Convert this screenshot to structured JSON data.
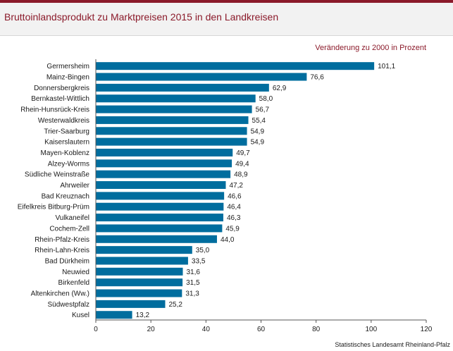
{
  "header": {
    "title": "Bruttoinlandsprodukt zu Marktpreisen 2015 in den Landkreisen"
  },
  "subtitle": "Veränderung zu 2000 in Prozent",
  "source": "Statistisches Landesamt Rheinland-Pfalz",
  "colors": {
    "bar": "#006d9e",
    "accent": "#8b1a2a",
    "header_bg": "#f2f2f2"
  },
  "chart_data": {
    "type": "bar",
    "orientation": "horizontal",
    "categories": [
      "Germersheim",
      "Mainz-Bingen",
      "Donnersbergkreis",
      "Bernkastel-Wittlich",
      "Rhein-Hunsrück-Kreis",
      "Westerwaldkreis",
      "Trier-Saarburg",
      "Kaiserslautern",
      "Mayen-Koblenz",
      "Alzey-Worms",
      "Südliche Weinstraße",
      "Ahrweiler",
      "Bad Kreuznach",
      "Eifelkreis Bitburg-Prüm",
      "Vulkaneifel",
      "Cochem-Zell",
      "Rhein-Pfalz-Kreis",
      "Rhein-Lahn-Kreis",
      "Bad Dürkheim",
      "Neuwied",
      "Birkenfeld",
      "Altenkirchen (Ww.)",
      "Südwestpfalz",
      "Kusel"
    ],
    "values": [
      101.1,
      76.6,
      62.9,
      58.0,
      56.7,
      55.4,
      54.9,
      54.9,
      49.7,
      49.4,
      48.9,
      47.2,
      46.6,
      46.4,
      46.3,
      45.9,
      44.0,
      35.0,
      33.5,
      31.6,
      31.5,
      31.3,
      25.2,
      13.2
    ],
    "labels": [
      "101,1",
      "76,6",
      "62,9",
      "58,0",
      "56,7",
      "55,4",
      "54,9",
      "54,9",
      "49,7",
      "49,4",
      "48,9",
      "47,2",
      "46,6",
      "46,4",
      "46,3",
      "45,9",
      "44,0",
      "35,0",
      "33,5",
      "31,6",
      "31,5",
      "31,3",
      "25,2",
      "13,2"
    ],
    "xlim": [
      0,
      120
    ],
    "xticks": [
      0,
      20,
      40,
      60,
      80,
      100,
      120
    ],
    "grid": false,
    "legend": "none"
  }
}
